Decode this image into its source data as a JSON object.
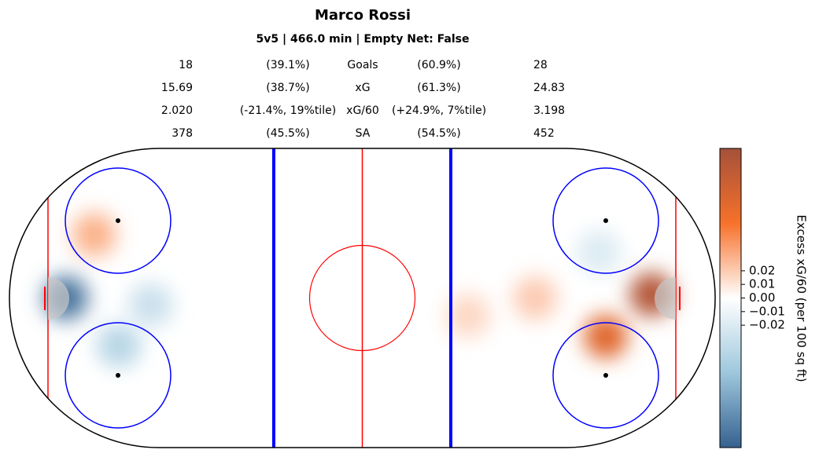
{
  "chart_data": {
    "type": "heatmap",
    "title": "Marco Rossi",
    "subtitle": "5v5 | 466.0 min | Empty Net: False",
    "stats": [
      [
        "18",
        "(39.1%)",
        "Goals",
        "(60.9%)",
        "28"
      ],
      [
        "15.69",
        "(38.7%)",
        "xG",
        "(61.3%)",
        "24.83"
      ],
      [
        "2.020",
        "(-21.4%, 19%tile)",
        "xG/60",
        "(+24.9%, 7%tile)",
        "3.198"
      ],
      [
        "378",
        "(45.5%)",
        "SA",
        "(54.5%)",
        "452"
      ]
    ],
    "xlim": [
      -100,
      100
    ],
    "ylim": [
      -42.5,
      42.5
    ],
    "heatmap": {
      "x": [
        -84,
        -69,
        -76,
        -60,
        82,
        69,
        49,
        67,
        30
      ],
      "y": [
        0,
        -13.5,
        18,
        -2,
        1,
        -11,
        0,
        13,
        -5
      ],
      "values": [
        -0.1,
        -0.04,
        0.03,
        -0.03,
        0.1,
        0.07,
        0.02,
        -0.02,
        0.015
      ]
    },
    "colormap": [
      "#35618f",
      "#9ec7dd",
      "#ffffff",
      "#f7712a",
      "#a4513a"
    ],
    "clim": [
      -0.11,
      0.11
    ],
    "cticks": [
      0.02,
      0.01,
      {
        "value": 0,
        "label": "0.00"
      },
      {
        "value": -0.01,
        "label": "−0.01"
      },
      {
        "value": -0.02,
        "label": "−0.02"
      }
    ],
    "colorbar_label": "Excess xG/60 (per 100 sq ft)"
  }
}
